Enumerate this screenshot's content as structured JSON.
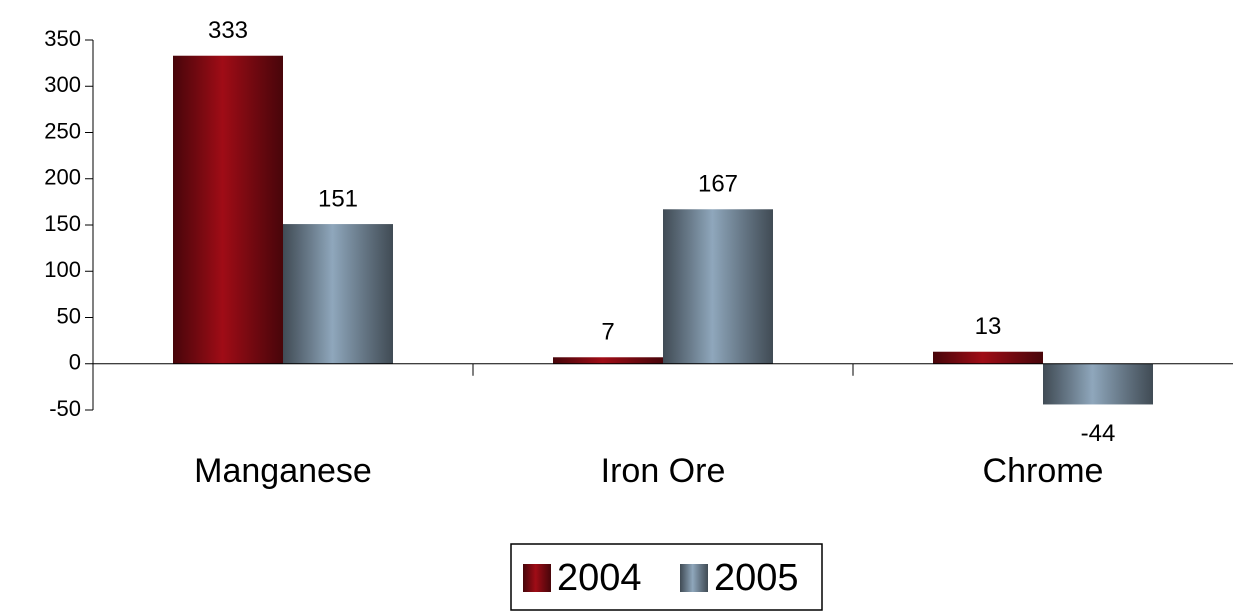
{
  "chart_data": {
    "type": "bar",
    "categories": [
      "Manganese",
      "Iron Ore",
      "Chrome"
    ],
    "series": [
      {
        "name": "2004",
        "color": "#a00c16",
        "values": [
          333,
          7,
          13
        ]
      },
      {
        "name": "2005",
        "color": "#8fa7bc",
        "values": [
          151,
          167,
          -44
        ]
      }
    ],
    "ylim": [
      -50,
      350
    ],
    "yticks": [
      -50,
      0,
      50,
      100,
      150,
      200,
      250,
      300,
      350
    ],
    "grid": false,
    "legend": "bottom"
  }
}
